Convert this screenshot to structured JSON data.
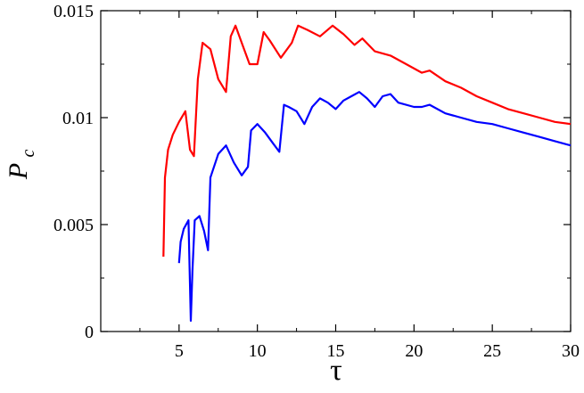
{
  "chart_data": {
    "type": "line",
    "title": "",
    "xlabel": "τ",
    "ylabel": "P",
    "ylabel_subscript": "c",
    "xlim": [
      0,
      30
    ],
    "ylim": [
      0,
      0.015
    ],
    "grid": false,
    "legend": "none",
    "x_ticks": [
      {
        "value": 5,
        "label": "5"
      },
      {
        "value": 10,
        "label": "10"
      },
      {
        "value": 15,
        "label": "15"
      },
      {
        "value": 20,
        "label": "20"
      },
      {
        "value": 25,
        "label": "25"
      },
      {
        "value": 30,
        "label": "30"
      }
    ],
    "y_ticks": [
      {
        "value": 0,
        "label": "0"
      },
      {
        "value": 0.005,
        "label": "0.005"
      },
      {
        "value": 0.01,
        "label": "0.01"
      },
      {
        "value": 0.015,
        "label": "0.015"
      }
    ],
    "series": [
      {
        "color": "#ff0000",
        "x": [
          4.0,
          4.1,
          4.3,
          4.6,
          5.0,
          5.4,
          5.7,
          5.95,
          6.2,
          6.5,
          7.0,
          7.5,
          8.0,
          8.3,
          8.6,
          9.0,
          9.5,
          10.0,
          10.4,
          10.8,
          11.5,
          12.2,
          12.6,
          13.2,
          14.0,
          14.8,
          15.5,
          16.2,
          16.7,
          17.5,
          18.5,
          19.5,
          20.5,
          21.0,
          22.0,
          23.0,
          24.0,
          25.0,
          26.0,
          27.0,
          28.0,
          29.0,
          30.0
        ],
        "y": [
          0.0035,
          0.0072,
          0.0085,
          0.0092,
          0.0098,
          0.0103,
          0.0085,
          0.0082,
          0.0118,
          0.0135,
          0.0132,
          0.0118,
          0.0112,
          0.0138,
          0.0143,
          0.0135,
          0.0125,
          0.0125,
          0.014,
          0.0136,
          0.0128,
          0.0135,
          0.0143,
          0.0141,
          0.0138,
          0.0143,
          0.0139,
          0.0134,
          0.0137,
          0.0131,
          0.0129,
          0.0125,
          0.0121,
          0.0122,
          0.0117,
          0.0114,
          0.011,
          0.0107,
          0.0104,
          0.0102,
          0.01,
          0.0098,
          0.0097
        ]
      },
      {
        "color": "#0000ff",
        "x": [
          5.0,
          5.1,
          5.3,
          5.6,
          5.75,
          5.85,
          6.0,
          6.3,
          6.6,
          6.85,
          7.0,
          7.5,
          8.0,
          8.5,
          9.0,
          9.4,
          9.6,
          10.0,
          10.5,
          11.0,
          11.4,
          11.7,
          12.0,
          12.5,
          13.0,
          13.5,
          14.0,
          14.5,
          15.0,
          15.5,
          16.0,
          16.5,
          17.0,
          17.5,
          18.0,
          18.5,
          19.0,
          20.0,
          20.5,
          21.0,
          22.0,
          23.0,
          24.0,
          25.0,
          26.0,
          27.0,
          28.0,
          29.0,
          30.0
        ],
        "y": [
          0.0032,
          0.0042,
          0.0048,
          0.0052,
          0.0005,
          0.0028,
          0.0052,
          0.0054,
          0.0047,
          0.0038,
          0.0072,
          0.0083,
          0.0087,
          0.0079,
          0.0073,
          0.0077,
          0.0094,
          0.0097,
          0.0093,
          0.0088,
          0.0084,
          0.0106,
          0.0105,
          0.0103,
          0.0097,
          0.0105,
          0.0109,
          0.0107,
          0.0104,
          0.0108,
          0.011,
          0.0112,
          0.0109,
          0.0105,
          0.011,
          0.0111,
          0.0107,
          0.0105,
          0.0105,
          0.0106,
          0.0102,
          0.01,
          0.0098,
          0.0097,
          0.0095,
          0.0093,
          0.0091,
          0.0089,
          0.0087
        ]
      }
    ]
  }
}
